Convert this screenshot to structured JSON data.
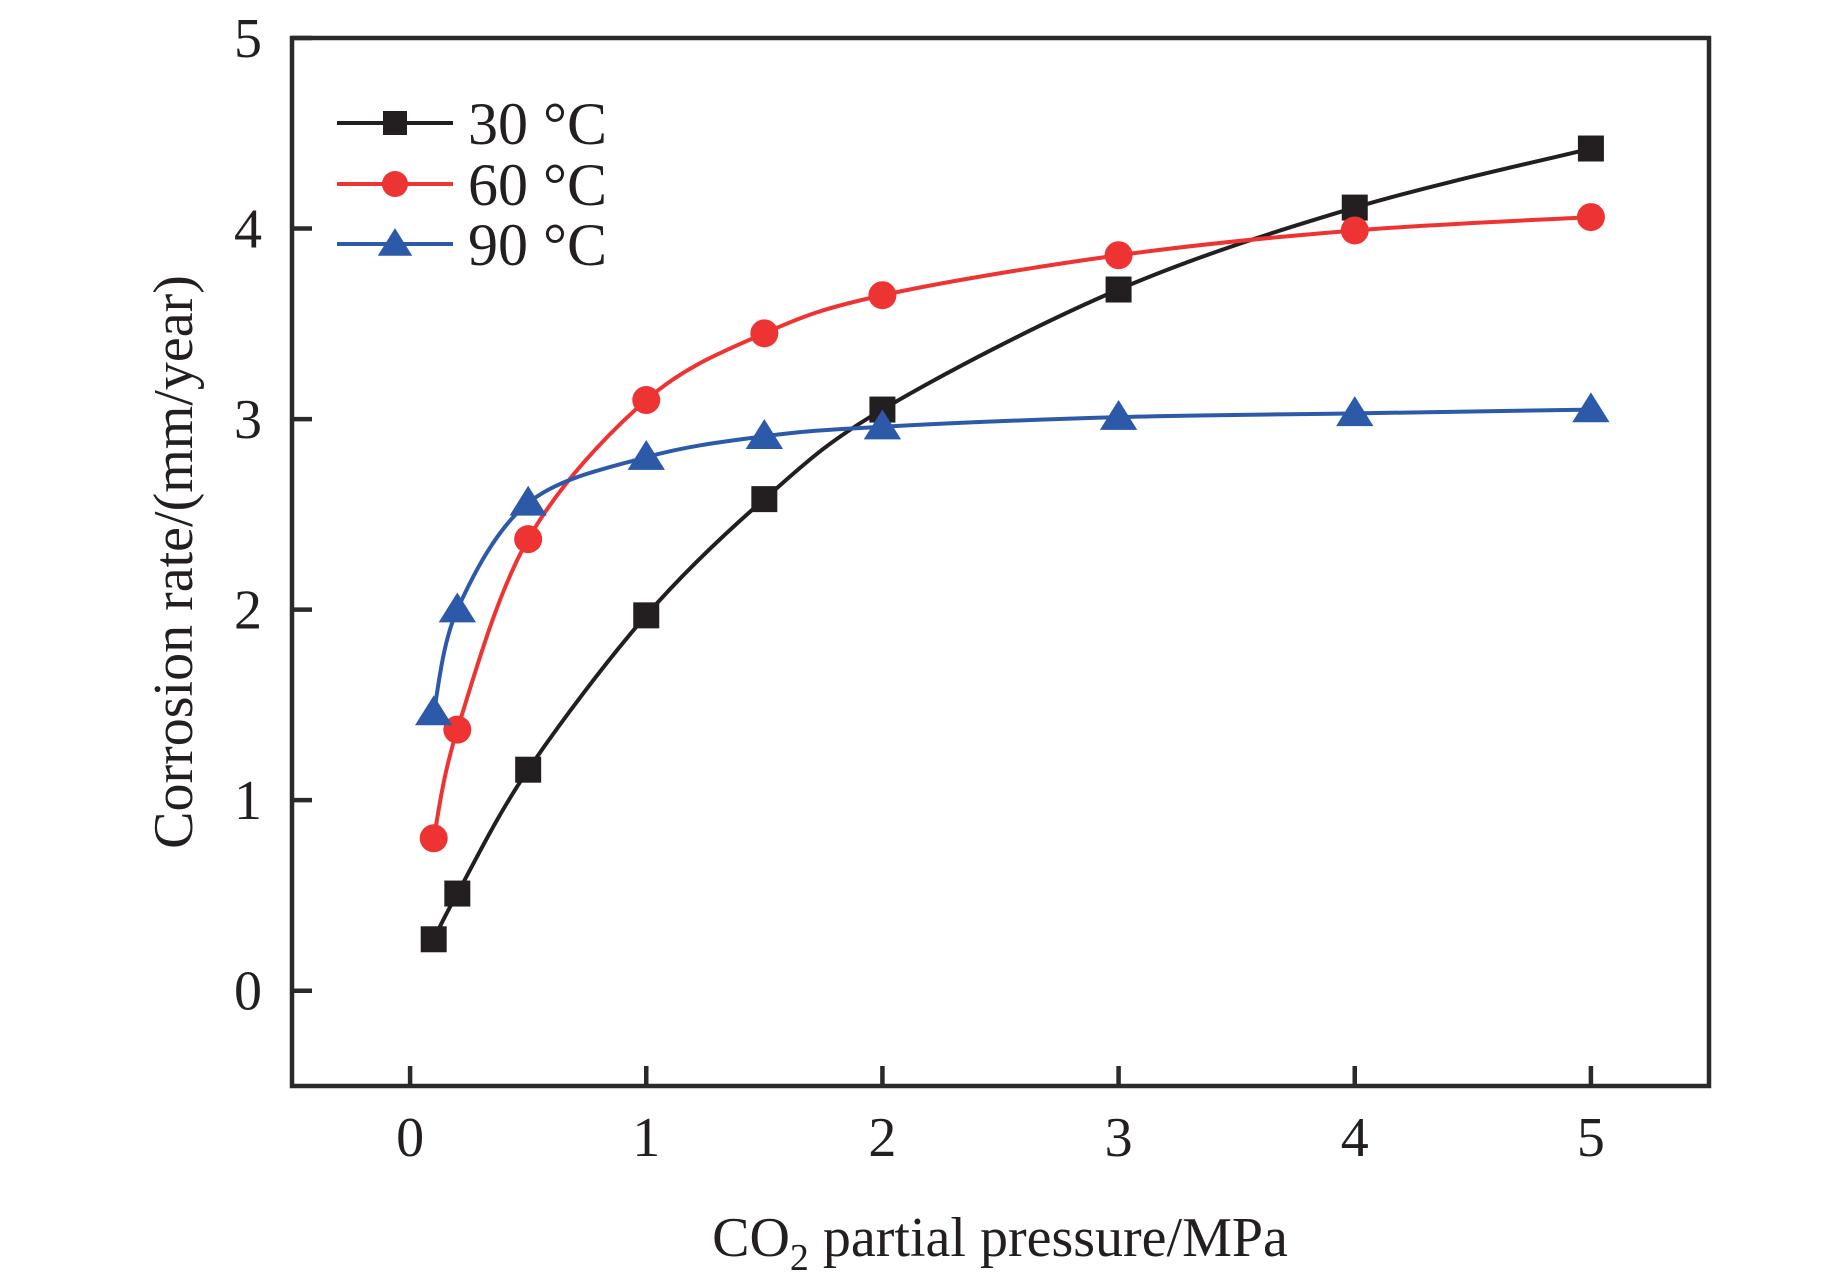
{
  "chart_data": {
    "type": "line",
    "title": "",
    "xlabel": "CO₂ partial pressure/MPa",
    "xlabel_parts": {
      "pre": "CO",
      "sub": "2",
      "post": " partial pressure/MPa"
    },
    "ylabel": "Corrosion rate/(mm/year)",
    "xlim": [
      -0.5,
      5.5
    ],
    "ylim": [
      -0.5,
      5
    ],
    "xticks": [
      0,
      1,
      2,
      3,
      4,
      5
    ],
    "yticks": [
      0,
      1,
      2,
      3,
      4,
      5
    ],
    "xtick_labels": [
      "0",
      "1",
      "2",
      "3",
      "4",
      "5"
    ],
    "ytick_labels": [
      "0",
      "1",
      "2",
      "3",
      "4",
      "5"
    ],
    "grid": false,
    "legend_position": "top-left",
    "smooth": true,
    "x": [
      0.1,
      0.2,
      0.5,
      1,
      1.5,
      2,
      3,
      4,
      5
    ],
    "series": [
      {
        "name": "30 °C",
        "marker": "square",
        "color": "#231f20",
        "values": [
          0.27,
          0.51,
          1.16,
          1.97,
          2.58,
          3.05,
          3.68,
          4.11,
          4.42
        ]
      },
      {
        "name": "60 °C",
        "marker": "circle",
        "color": "#ee3333",
        "values": [
          0.8,
          1.37,
          2.37,
          3.1,
          3.45,
          3.65,
          3.86,
          3.99,
          4.06
        ]
      },
      {
        "name": "90 °C",
        "marker": "triangle",
        "color": "#2c5aa8",
        "values": [
          1.46,
          2.0,
          2.56,
          2.8,
          2.91,
          2.96,
          3.01,
          3.03,
          3.05
        ]
      }
    ]
  }
}
